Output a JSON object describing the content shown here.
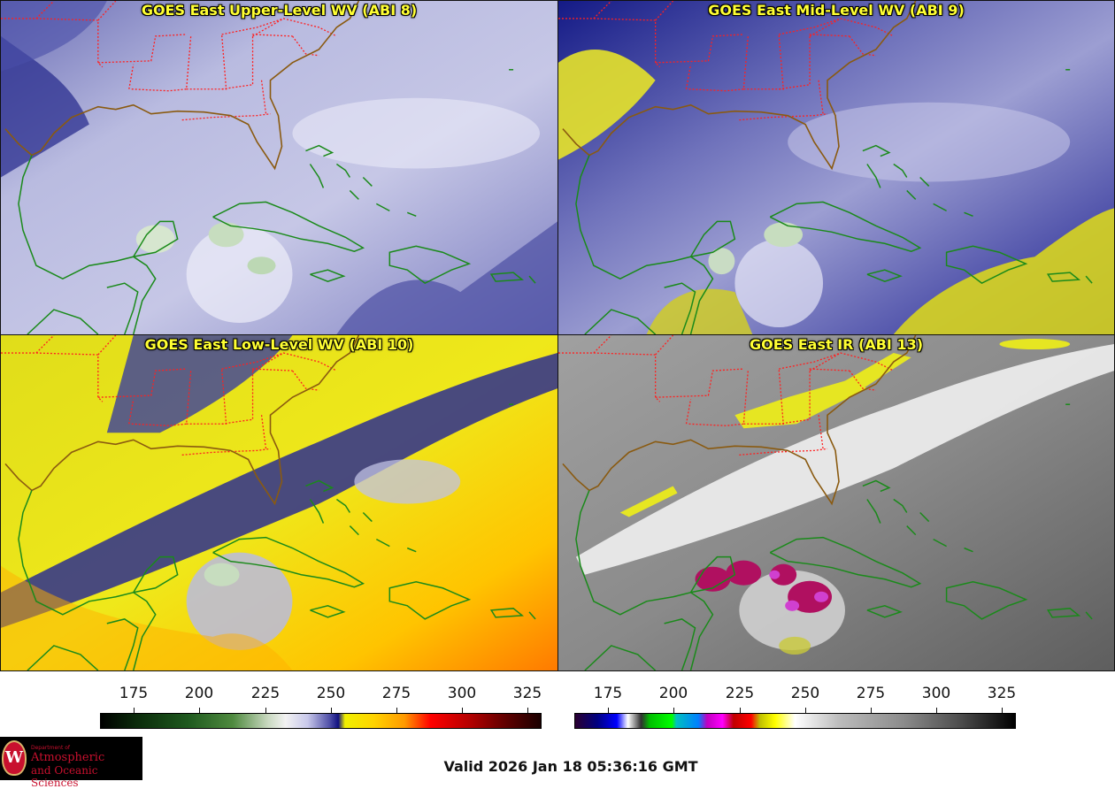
{
  "panels": [
    {
      "title": "GOES East Upper-Level WV (ABI 8)",
      "scheme": "wv-upper"
    },
    {
      "title": "GOES East Mid-Level WV (ABI 9)",
      "scheme": "wv-mid"
    },
    {
      "title": "GOES East Low-Level WV (ABI 10)",
      "scheme": "wv-low"
    },
    {
      "title": "GOES East IR (ABI 13)",
      "scheme": "ir"
    }
  ],
  "colorbars": [
    {
      "name": "water-vapor",
      "ticks": [
        "175",
        "200",
        "225",
        "250",
        "275",
        "300",
        "325"
      ]
    },
    {
      "name": "infrared",
      "ticks": [
        "175",
        "200",
        "225",
        "250",
        "275",
        "300",
        "325"
      ]
    }
  ],
  "logo": {
    "line1": "Department of",
    "line2": "Atmospheric",
    "line3": "and Oceanic Sciences",
    "seal_letter": "W"
  },
  "valid_time": "Valid 2026 Jan 18 05:36:16 GMT",
  "colors": {
    "title_text": "#ffff33",
    "coastline": "#1a8a1a",
    "state_borders": "#ff2020",
    "us_coast": "#8a5a10"
  }
}
